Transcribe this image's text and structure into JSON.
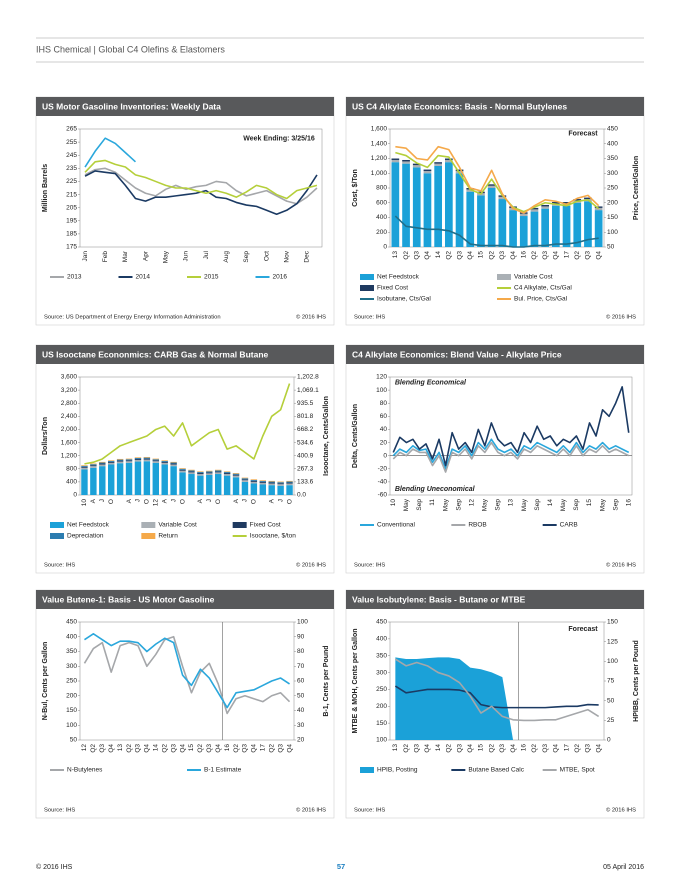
{
  "header": {
    "text": "IHS Chemical | Global C4 Olefins & Elastomers"
  },
  "footer": {
    "copyright": "© 2016 IHS",
    "page": "57",
    "date": "05 April 2016"
  },
  "chart_data": [
    {
      "type": "line",
      "title": "US Motor Gasoline Inventories: Weekly Data",
      "ylabel": "Million Barrels",
      "categories": [
        "Jan",
        null,
        "Feb",
        null,
        "Mar",
        null,
        "Apr",
        null,
        "May",
        null,
        "Jun",
        null,
        "Jul",
        null,
        "Aug",
        null,
        "Sep",
        null,
        "Oct",
        null,
        "Nov",
        null,
        "Dec",
        null
      ],
      "series": [
        {
          "name": "2013",
          "color": "#a5a7aa",
          "values": [
            230,
            234,
            235,
            232,
            226,
            220,
            216,
            214,
            219,
            222,
            219,
            221,
            222,
            225,
            224,
            218,
            214,
            216,
            218,
            214,
            210,
            208,
            213,
            220
          ]
        },
        {
          "name": "2014",
          "color": "#1b3a63",
          "values": [
            229,
            233,
            232,
            231,
            222,
            212,
            210,
            213,
            213,
            214,
            215,
            216,
            218,
            213,
            212,
            209,
            207,
            206,
            203,
            200,
            203,
            208,
            218,
            230
          ]
        },
        {
          "name": "2015",
          "color": "#b5cf3a",
          "values": [
            232,
            240,
            241,
            238,
            236,
            230,
            228,
            225,
            222,
            220,
            220,
            218,
            216,
            218,
            216,
            213,
            217,
            222,
            220,
            215,
            212,
            218,
            220,
            222
          ]
        },
        {
          "name": "2016",
          "color": "#2aa7dc",
          "values": [
            236,
            248,
            258,
            254,
            247,
            240,
            null,
            null,
            null,
            null,
            null,
            null,
            null,
            null,
            null,
            null,
            null,
            null,
            null,
            null,
            null,
            null,
            null,
            null
          ]
        }
      ],
      "ylim": [
        175,
        265
      ],
      "yticks": [
        175,
        185,
        195,
        205,
        215,
        225,
        235,
        245,
        255,
        265
      ],
      "annotations": [
        "Week Ending: 3/25/16"
      ],
      "source": "Source: US Department of Energy Energy Information Administration",
      "copyright": "© 2016 IHS"
    },
    {
      "type": "bar",
      "stacked": true,
      "title": "US C4 Alkylate Economics: Basis - Normal Butylenes",
      "ylabel": "Cost, $/Ton",
      "y2label": "Price, Cents/Gallon",
      "categories": [
        "13",
        "Q2",
        "Q3",
        "Q4",
        "14",
        "Q2",
        "Q3",
        "Q4",
        "15",
        "Q2",
        "Q3",
        "Q4",
        "16",
        "Q2",
        "Q3",
        "Q4",
        "17",
        "Q2",
        "Q3",
        "Q4"
      ],
      "series": [
        {
          "name": "Net Feedstock",
          "type": "bar",
          "color": "#1ba1d8",
          "values": [
            1150,
            1130,
            1080,
            1000,
            1100,
            1150,
            1000,
            750,
            700,
            800,
            650,
            500,
            420,
            480,
            520,
            560,
            560,
            600,
            620,
            500
          ]
        },
        {
          "name": "Variable Cost",
          "type": "bar",
          "color": "#aab0b5",
          "values": [
            30,
            30,
            30,
            30,
            30,
            30,
            30,
            30,
            30,
            30,
            30,
            30,
            30,
            30,
            30,
            30,
            30,
            30,
            30,
            30
          ]
        },
        {
          "name": "Fixed Cost",
          "type": "bar",
          "color": "#1f3a60",
          "values": [
            20,
            20,
            20,
            20,
            20,
            20,
            20,
            20,
            20,
            20,
            20,
            20,
            20,
            20,
            20,
            20,
            20,
            20,
            20,
            20
          ]
        },
        {
          "name": "C4 Alkylate, Cts/Gal",
          "type": "line",
          "axis": "y2",
          "color": "#b5cf3a",
          "values": [
            370,
            360,
            335,
            320,
            360,
            355,
            300,
            245,
            230,
            280,
            225,
            185,
            170,
            185,
            200,
            195,
            190,
            205,
            210,
            180
          ]
        },
        {
          "name": "Isobutane, Cts/Gal",
          "type": "line",
          "axis": "y2",
          "color": "#1f6f8b",
          "values": [
            155,
            120,
            115,
            110,
            110,
            105,
            90,
            60,
            55,
            55,
            55,
            50,
            50,
            55,
            55,
            60,
            60,
            65,
            75,
            80
          ]
        },
        {
          "name": "Bul. Price, Cts/Gal",
          "type": "line",
          "axis": "y2",
          "color": "#f5a94a",
          "values": [
            390,
            385,
            350,
            345,
            390,
            380,
            320,
            250,
            240,
            310,
            230,
            180,
            165,
            190,
            210,
            205,
            195,
            215,
            225,
            190
          ]
        }
      ],
      "ylim": [
        0,
        1600
      ],
      "yticks": [
        0,
        200,
        400,
        600,
        800,
        {
          "value": 1000,
          "label": "1,000"
        },
        {
          "value": 1200,
          "label": "1,200"
        },
        {
          "value": 1400,
          "label": "1,400"
        },
        {
          "value": 1600,
          "label": "1,600"
        }
      ],
      "y2lim": [
        50,
        450
      ],
      "y2ticks": [
        50,
        100,
        150,
        200,
        250,
        300,
        350,
        400,
        450
      ],
      "annotations": [
        "Forecast"
      ],
      "source": "Source: IHS",
      "copyright": "© 2016 IHS"
    },
    {
      "type": "bar",
      "stacked": true,
      "title": "US Isooctane Econonmics: CARB Gas & Normal Butane",
      "ylabel": "Dollars/Ton",
      "y2label": "Isooctane, Cents/Gallon",
      "categories": [
        "10",
        "A",
        "J",
        "O",
        null,
        "A",
        "J",
        "O",
        "12",
        "A",
        "J",
        "O",
        null,
        "A",
        "J",
        "O",
        null,
        "A",
        "J",
        "O",
        null,
        "A",
        "J",
        "O"
      ],
      "series": [
        {
          "name": "Net Feedstock",
          "type": "bar",
          "color": "#1ba1d8",
          "values": [
            780,
            830,
            880,
            930,
            970,
            980,
            1020,
            1030,
            980,
            930,
            880,
            690,
            640,
            590,
            610,
            640,
            590,
            540,
            400,
            350,
            320,
            300,
            280,
            300
          ]
        },
        {
          "name": "Variable Cost",
          "type": "bar",
          "color": "#aab0b5",
          "values": [
            50,
            50,
            50,
            50,
            50,
            50,
            50,
            50,
            50,
            50,
            50,
            50,
            50,
            50,
            50,
            50,
            50,
            50,
            50,
            50,
            50,
            50,
            50,
            50
          ]
        },
        {
          "name": "Fixed Cost",
          "type": "bar",
          "color": "#1f3a60",
          "values": [
            30,
            30,
            30,
            30,
            30,
            30,
            30,
            30,
            30,
            30,
            30,
            30,
            30,
            30,
            30,
            30,
            30,
            30,
            30,
            30,
            30,
            30,
            30,
            30
          ]
        },
        {
          "name": "Depreciation",
          "type": "bar",
          "color": "#2b7cb0",
          "values": [
            30,
            30,
            30,
            30,
            30,
            30,
            30,
            30,
            30,
            30,
            30,
            30,
            30,
            30,
            30,
            30,
            30,
            30,
            30,
            30,
            30,
            30,
            30,
            30
          ]
        },
        {
          "name": "Return",
          "type": "bar",
          "color": "#f5a94a",
          "values": [
            20,
            20,
            20,
            20,
            20,
            20,
            20,
            20,
            20,
            20,
            20,
            20,
            20,
            20,
            20,
            20,
            20,
            20,
            20,
            20,
            20,
            20,
            20,
            20
          ]
        },
        {
          "name": "Isooctane, $/ton",
          "type": "line",
          "color": "#b5cf3a",
          "values": [
            950,
            1000,
            1100,
            1300,
            1500,
            1600,
            1700,
            1800,
            2000,
            2100,
            1800,
            2200,
            1500,
            1700,
            1900,
            2000,
            1400,
            1500,
            1300,
            1100,
            1800,
            2400,
            2600,
            3400
          ]
        }
      ],
      "ylim": [
        0,
        3600
      ],
      "yticks": [
        0,
        400,
        800,
        {
          "value": 1200,
          "label": "1,200"
        },
        {
          "value": 1600,
          "label": "1,600"
        },
        {
          "value": 2000,
          "label": "2,000"
        },
        {
          "value": 2400,
          "label": "2,400"
        },
        {
          "value": 2800,
          "label": "2,800"
        },
        {
          "value": 3200,
          "label": "3,200"
        },
        {
          "value": 3600,
          "label": "3,600"
        }
      ],
      "y2lim": [
        0,
        1202.8
      ],
      "y2ticks": [
        {
          "value": 0,
          "label": "0.0"
        },
        133.6,
        267.3,
        400.9,
        534.6,
        668.2,
        801.8,
        935.5,
        {
          "value": 1069.1,
          "label": "1,069.1"
        },
        {
          "value": 1202.8,
          "label": "1,202.8"
        }
      ],
      "source": "Source: IHS",
      "copyright": "© 2016 IHS"
    },
    {
      "type": "line",
      "title": "C4 Alkylate Economics: Blend Value - Alkylate Price",
      "ylabel": "Delta, Cents/Gallon",
      "categories": [
        "10",
        null,
        "May",
        null,
        "Sep",
        null,
        "11",
        null,
        "May",
        null,
        "Sep",
        null,
        "12",
        null,
        "May",
        null,
        "Sep",
        null,
        "13",
        null,
        "May",
        null,
        "Sep",
        null,
        "14",
        null,
        "May",
        null,
        "Sep",
        null,
        "15",
        null,
        "May",
        null,
        "Sep",
        null,
        "16"
      ],
      "series": [
        {
          "name": "Conventional",
          "color": "#2aa7dc",
          "values": [
            0,
            10,
            5,
            15,
            8,
            10,
            -10,
            5,
            -20,
            10,
            5,
            15,
            0,
            20,
            10,
            25,
            10,
            5,
            10,
            0,
            15,
            10,
            20,
            15,
            10,
            5,
            15,
            5,
            20,
            5,
            15,
            10,
            20,
            10,
            15,
            10,
            5
          ]
        },
        {
          "name": "RBOB",
          "color": "#a5a7aa",
          "values": [
            -5,
            5,
            0,
            10,
            5,
            5,
            -15,
            0,
            -25,
            5,
            0,
            10,
            -5,
            15,
            5,
            20,
            5,
            0,
            5,
            -5,
            10,
            5,
            15,
            10,
            5,
            0,
            10,
            0,
            15,
            0,
            10,
            5,
            15,
            5,
            10,
            5,
            0
          ]
        },
        {
          "name": "CARB",
          "color": "#1b3a63",
          "values": [
            5,
            28,
            20,
            25,
            10,
            18,
            -5,
            25,
            -15,
            35,
            10,
            20,
            5,
            40,
            15,
            50,
            25,
            15,
            20,
            5,
            35,
            20,
            45,
            25,
            30,
            15,
            25,
            20,
            30,
            10,
            50,
            30,
            70,
            60,
            80,
            105,
            35
          ]
        }
      ],
      "ylim": [
        -60,
        120
      ],
      "yticks": [
        -60,
        -40,
        -20,
        0,
        20,
        40,
        60,
        80,
        100,
        120
      ],
      "annotations": [
        "Blending Economical",
        "Blending Uneconomical"
      ],
      "source": "Source: IHS",
      "copyright": "© 2016 IHS"
    },
    {
      "type": "line",
      "title": "Value Butene-1: Basis - US Motor Gasoline",
      "ylabel": "N-Bul, Cents per Gallon",
      "y2label": "B-1, Cents per Pound",
      "categories": [
        "12",
        "Q2",
        "Q3",
        "Q4",
        "13",
        "Q2",
        "Q3",
        "Q4",
        "14",
        "Q2",
        "Q3",
        "Q4",
        "15",
        "Q2",
        "Q3",
        "Q4",
        "16",
        "Q2",
        "Q3",
        "Q4",
        "17",
        "Q2",
        "Q3",
        "Q4"
      ],
      "series": [
        {
          "name": "N-Butylenes",
          "color": "#a5a7aa",
          "values": [
            310,
            360,
            380,
            280,
            370,
            380,
            370,
            300,
            340,
            390,
            400,
            300,
            210,
            280,
            310,
            240,
            140,
            190,
            200,
            190,
            180,
            200,
            210,
            180
          ]
        },
        {
          "name": "B-1 Estimate",
          "axis": "y2",
          "color": "#2aa7dc",
          "values": [
            88,
            92,
            88,
            84,
            87,
            87,
            86,
            80,
            85,
            89,
            86,
            64,
            57,
            68,
            62,
            52,
            42,
            52,
            53,
            54,
            57,
            60,
            62,
            58
          ]
        }
      ],
      "ylim": [
        50,
        450
      ],
      "yticks": [
        50,
        100,
        150,
        200,
        250,
        300,
        350,
        400,
        450
      ],
      "y2lim": [
        20,
        100
      ],
      "y2ticks": [
        20,
        30,
        40,
        50,
        60,
        70,
        80,
        90,
        100
      ],
      "source": "Source: IHS",
      "copyright": "© 2016 IHS"
    },
    {
      "type": "line",
      "title": "Value Isobutylene: Basis - Butane or MTBE",
      "ylabel": "MTBE & MOH, Cents per Gallon",
      "y2label": "HPIBB, Cents per Pound",
      "categories": [
        "13",
        "Q2",
        "Q3",
        "Q4",
        "14",
        "Q2",
        "Q3",
        "Q4",
        "15",
        "Q2",
        "Q3",
        "Q4",
        "16",
        "Q2",
        "Q3",
        "Q4",
        "17",
        "Q2",
        "Q3",
        "Q4"
      ],
      "series": [
        {
          "name": "HPIB, Posting",
          "type": "area",
          "axis": "y2",
          "color": "#1ba1d8",
          "values": [
            105,
            103,
            103,
            104,
            105,
            105,
            103,
            92,
            90,
            86,
            80,
            0,
            null,
            null,
            null,
            null,
            null,
            null,
            null,
            null
          ]
        },
        {
          "name": "Butane Based Calc",
          "color": "#1b3a63",
          "values": [
            260,
            240,
            245,
            250,
            250,
            250,
            248,
            240,
            205,
            198,
            196,
            196,
            196,
            196,
            196,
            198,
            200,
            200,
            205,
            204
          ]
        },
        {
          "name": "MTBE, Spot",
          "color": "#a5a7aa",
          "values": [
            340,
            320,
            330,
            320,
            300,
            290,
            270,
            230,
            180,
            200,
            170,
            160,
            158,
            158,
            160,
            160,
            170,
            180,
            190,
            170
          ]
        }
      ],
      "ylim": [
        100,
        450
      ],
      "yticks": [
        100,
        150,
        200,
        250,
        300,
        350,
        400,
        450
      ],
      "y2lim": [
        0,
        150
      ],
      "y2ticks": [
        0,
        25,
        50,
        75,
        100,
        125,
        150
      ],
      "annotations": [
        "Forecast"
      ],
      "source": "Source: IHS",
      "copyright": "© 2016 IHS"
    }
  ]
}
